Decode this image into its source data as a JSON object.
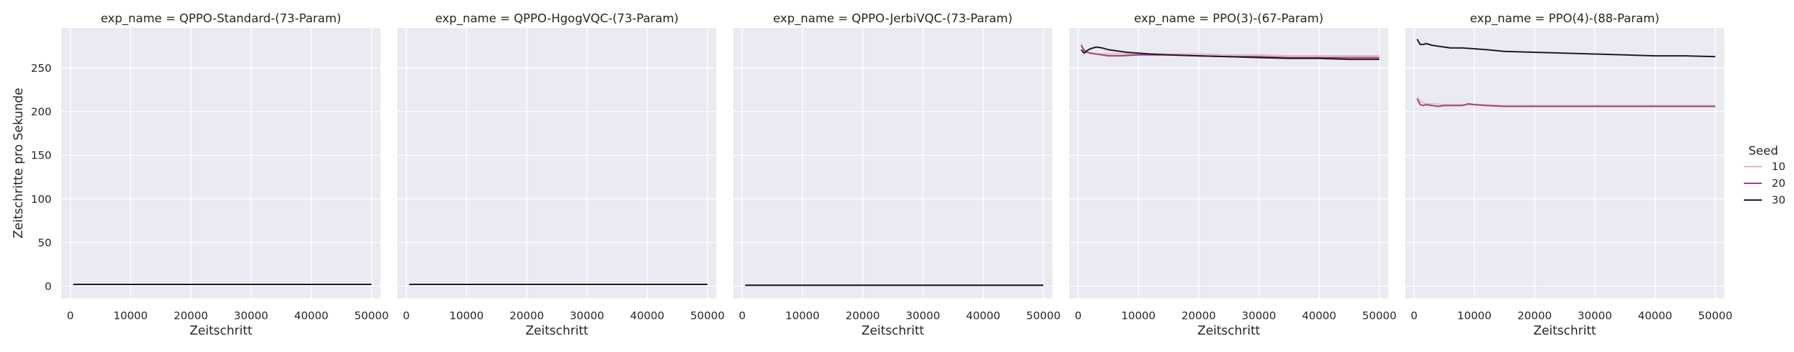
{
  "chart_data": {
    "type": "line",
    "facet_titles": [
      "exp_name = QPPO-Standard-(73-Param)",
      "exp_name = QPPO-HgogVQC-(73-Param)",
      "exp_name = QPPO-JerbiVQC-(73-Param)",
      "exp_name = PPO(3)-(67-Param)",
      "exp_name = PPO(4)-(88-Param)"
    ],
    "xlabel": "Zeitschritt",
    "ylabel": "Zeitschritte pro Sekunde",
    "xlim": [
      -1500,
      51500
    ],
    "ylim": [
      -14,
      296
    ],
    "x_ticks": [
      0,
      10000,
      20000,
      30000,
      40000,
      50000
    ],
    "y_ticks": [
      0,
      50,
      100,
      150,
      200,
      250
    ],
    "grid": true,
    "legend": {
      "title": "Seed",
      "placement": "right",
      "entries": [
        {
          "label": "10",
          "color": "#e8b6c0"
        },
        {
          "label": "20",
          "color": "#a0407f"
        },
        {
          "label": "30",
          "color": "#1d1530"
        }
      ]
    },
    "colors": {
      "panel_background": "#eaeaf2",
      "grid": "#ffffff"
    },
    "facets": [
      {
        "series": [
          {
            "name": "10",
            "x": [
              500,
              50000
            ],
            "y": [
              2,
              2
            ]
          },
          {
            "name": "20",
            "x": [
              500,
              50000
            ],
            "y": [
              2,
              2
            ]
          },
          {
            "name": "30",
            "x": [
              500,
              50000
            ],
            "y": [
              2,
              2
            ]
          }
        ]
      },
      {
        "series": [
          {
            "name": "10",
            "x": [
              500,
              50000
            ],
            "y": [
              2,
              2
            ]
          },
          {
            "name": "20",
            "x": [
              500,
              50000
            ],
            "y": [
              2,
              2
            ]
          },
          {
            "name": "30",
            "x": [
              500,
              50000
            ],
            "y": [
              2,
              2
            ]
          }
        ]
      },
      {
        "series": [
          {
            "name": "10",
            "x": [
              500,
              50000
            ],
            "y": [
              1,
              1
            ]
          },
          {
            "name": "20",
            "x": [
              500,
              50000
            ],
            "y": [
              1,
              1
            ]
          },
          {
            "name": "30",
            "x": [
              500,
              50000
            ],
            "y": [
              1,
              1
            ]
          }
        ]
      },
      {
        "series": [
          {
            "name": "10",
            "x": [
              500,
              1000,
              1500,
              2000,
              3000,
              4000,
              5000,
              7000,
              10000,
              15000,
              20000,
              25000,
              30000,
              35000,
              40000,
              45000,
              50000
            ],
            "y": [
              278,
              271,
              268,
              267,
              266,
              266,
              266,
              266,
              266,
              266,
              266,
              265,
              265,
              264,
              264,
              264,
              264
            ]
          },
          {
            "name": "20",
            "x": [
              500,
              1000,
              1500,
              2000,
              3000,
              4000,
              5000,
              7000,
              10000,
              15000,
              20000,
              25000,
              30000,
              35000,
              40000,
              45000,
              50000
            ],
            "y": [
              276,
              270,
              268,
              267,
              266,
              265,
              264,
              264,
              265,
              265,
              264,
              263,
              263,
              262,
              262,
              262,
              262
            ]
          },
          {
            "name": "30",
            "x": [
              500,
              1000,
              1500,
              2000,
              3000,
              4000,
              5000,
              6000,
              7000,
              8000,
              10000,
              12000,
              15000,
              20000,
              25000,
              30000,
              35000,
              40000,
              45000,
              50000
            ],
            "y": [
              271,
              267,
              270,
              272,
              274,
              273,
              271,
              270,
              269,
              268,
              267,
              266,
              265,
              264,
              263,
              262,
              261,
              261,
              260,
              260
            ]
          }
        ]
      },
      {
        "series": [
          {
            "name": "10",
            "x": [
              500,
              1000,
              2000,
              3000,
              5000,
              8000,
              10000,
              15000,
              20000,
              25000,
              30000,
              35000,
              40000,
              45000,
              50000
            ],
            "y": [
              217,
              212,
              209,
              209,
              208,
              208,
              208,
              207,
              207,
              207,
              207,
              207,
              207,
              207,
              207
            ]
          },
          {
            "name": "20",
            "x": [
              500,
              1000,
              1500,
              2000,
              3000,
              4000,
              5000,
              6000,
              8000,
              9000,
              10000,
              12000,
              15000,
              20000,
              25000,
              30000,
              35000,
              40000,
              45000,
              50000
            ],
            "y": [
              215,
              208,
              207,
              208,
              207,
              206,
              207,
              207,
              207,
              209,
              208,
              207,
              206,
              206,
              206,
              206,
              206,
              206,
              206,
              206
            ]
          },
          {
            "name": "30",
            "x": [
              500,
              1000,
              1500,
              2000,
              3000,
              4000,
              5000,
              6000,
              8000,
              10000,
              12000,
              15000,
              20000,
              25000,
              30000,
              35000,
              40000,
              45000,
              50000
            ],
            "y": [
              283,
              277,
              277,
              278,
              276,
              275,
              274,
              273,
              273,
              272,
              271,
              269,
              268,
              267,
              266,
              265,
              264,
              264,
              263
            ]
          }
        ]
      }
    ]
  }
}
